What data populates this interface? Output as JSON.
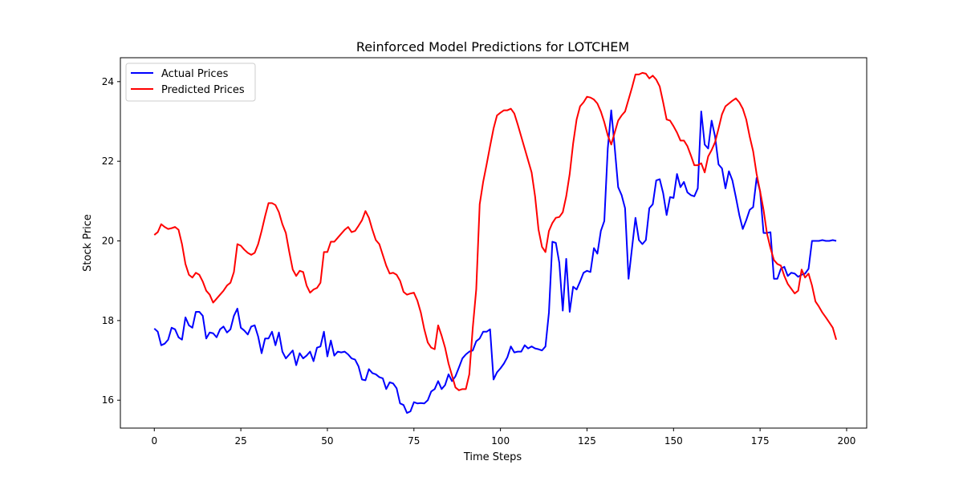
{
  "chart_data": {
    "type": "line",
    "title": "Reinforced Model Predictions for LOTCHEM",
    "xlabel": "Time Steps",
    "ylabel": "Stock Price",
    "xlim": [
      -9.8,
      205.8
    ],
    "ylim": [
      15.3,
      24.6
    ],
    "xticks": [
      0,
      25,
      50,
      75,
      100,
      125,
      150,
      175,
      200
    ],
    "yticks": [
      16,
      18,
      20,
      22,
      24
    ],
    "grid": false,
    "legend": "upper left",
    "series": [
      {
        "name": "Actual Prices",
        "color": "#0000ff",
        "values": [
          17.8,
          17.72,
          17.38,
          17.42,
          17.52,
          17.82,
          17.78,
          17.58,
          17.52,
          18.08,
          17.88,
          17.82,
          18.22,
          18.22,
          18.12,
          17.55,
          17.7,
          17.68,
          17.58,
          17.78,
          17.85,
          17.7,
          17.78,
          18.12,
          18.3,
          17.82,
          17.75,
          17.65,
          17.85,
          17.88,
          17.6,
          17.18,
          17.55,
          17.55,
          17.72,
          17.38,
          17.7,
          17.22,
          17.05,
          17.15,
          17.25,
          16.88,
          17.18,
          17.05,
          17.12,
          17.22,
          16.98,
          17.32,
          17.35,
          17.72,
          17.1,
          17.5,
          17.12,
          17.22,
          17.2,
          17.22,
          17.15,
          17.05,
          17.02,
          16.85,
          16.52,
          16.5,
          16.78,
          16.68,
          16.65,
          16.58,
          16.55,
          16.28,
          16.45,
          16.42,
          16.3,
          15.92,
          15.88,
          15.68,
          15.72,
          15.95,
          15.92,
          15.93,
          15.92,
          16.0,
          16.22,
          16.28,
          16.48,
          16.28,
          16.38,
          16.65,
          16.48,
          16.6,
          16.82,
          17.05,
          17.15,
          17.22,
          17.25,
          17.48,
          17.55,
          17.72,
          17.72,
          17.78,
          16.52,
          16.7,
          16.8,
          16.92,
          17.08,
          17.35,
          17.2,
          17.22,
          17.22,
          17.38,
          17.3,
          17.35,
          17.3,
          17.28,
          17.25,
          17.35,
          18.2,
          19.98,
          19.95,
          19.45,
          18.25,
          19.55,
          18.22,
          18.85,
          18.78,
          18.98,
          19.2,
          19.25,
          19.22,
          19.82,
          19.68,
          20.25,
          20.5,
          22.32,
          23.28,
          22.35,
          21.35,
          21.15,
          20.82,
          19.05,
          19.82,
          20.58,
          20.02,
          19.92,
          20.02,
          20.82,
          20.92,
          21.52,
          21.55,
          21.2,
          20.65,
          21.1,
          21.08,
          21.68,
          21.35,
          21.48,
          21.22,
          21.15,
          21.12,
          21.32,
          23.25,
          22.42,
          22.32,
          23.02,
          22.62,
          21.92,
          21.82,
          21.32,
          21.75,
          21.52,
          21.1,
          20.65,
          20.3,
          20.52,
          20.78,
          20.85,
          21.58,
          21.25,
          20.2,
          20.2,
          20.22,
          19.05,
          19.05,
          19.3,
          19.35,
          19.12,
          19.2,
          19.18,
          19.1,
          19.15,
          19.18,
          19.3,
          20.0,
          20.0,
          20.0,
          20.02,
          20.0,
          20.0,
          20.02,
          20.0
        ]
      },
      {
        "name": "Predicted Prices",
        "color": "#ff0000",
        "values": [
          20.15,
          20.22,
          20.42,
          20.35,
          20.3,
          20.32,
          20.35,
          20.28,
          19.92,
          19.42,
          19.15,
          19.08,
          19.2,
          19.15,
          18.98,
          18.75,
          18.65,
          18.45,
          18.55,
          18.65,
          18.75,
          18.88,
          18.95,
          19.22,
          19.92,
          19.88,
          19.78,
          19.7,
          19.65,
          19.7,
          19.92,
          20.25,
          20.62,
          20.95,
          20.95,
          20.9,
          20.72,
          20.42,
          20.2,
          19.72,
          19.28,
          19.12,
          19.25,
          19.22,
          18.88,
          18.7,
          18.78,
          18.82,
          18.95,
          19.72,
          19.72,
          19.98,
          19.98,
          20.08,
          20.18,
          20.28,
          20.35,
          20.22,
          20.25,
          20.38,
          20.52,
          20.75,
          20.58,
          20.28,
          20.02,
          19.92,
          19.65,
          19.38,
          19.18,
          19.2,
          19.15,
          19.0,
          18.72,
          18.65,
          18.68,
          18.7,
          18.5,
          18.2,
          17.78,
          17.45,
          17.32,
          17.28,
          17.88,
          17.62,
          17.32,
          16.92,
          16.62,
          16.32,
          16.25,
          16.28,
          16.28,
          16.65,
          17.82,
          18.78,
          20.92,
          21.48,
          21.92,
          22.38,
          22.82,
          23.15,
          23.22,
          23.28,
          23.28,
          23.32,
          23.2,
          22.92,
          22.62,
          22.32,
          22.02,
          21.72,
          21.12,
          20.28,
          19.85,
          19.72,
          20.25,
          20.45,
          20.58,
          20.6,
          20.72,
          21.12,
          21.68,
          22.45,
          23.05,
          23.38,
          23.48,
          23.62,
          23.6,
          23.55,
          23.45,
          23.25,
          22.98,
          22.65,
          22.42,
          22.72,
          23.02,
          23.15,
          23.25,
          23.55,
          23.85,
          24.18,
          24.18,
          24.22,
          24.2,
          24.08,
          24.15,
          24.05,
          23.88,
          23.48,
          23.05,
          23.02,
          22.88,
          22.72,
          22.52,
          22.52,
          22.38,
          22.15,
          21.9,
          21.9,
          21.95,
          21.72,
          22.12,
          22.28,
          22.48,
          22.82,
          23.18,
          23.38,
          23.45,
          23.52,
          23.58,
          23.48,
          23.32,
          23.05,
          22.62,
          22.25,
          21.68,
          21.25,
          20.78,
          20.18,
          19.82,
          19.52,
          19.42,
          19.38,
          19.12,
          18.92,
          18.8,
          18.68,
          18.75,
          19.28,
          19.08,
          19.18,
          18.88,
          18.48,
          18.35,
          18.2,
          18.08,
          17.95,
          17.82,
          17.52
        ]
      }
    ]
  }
}
